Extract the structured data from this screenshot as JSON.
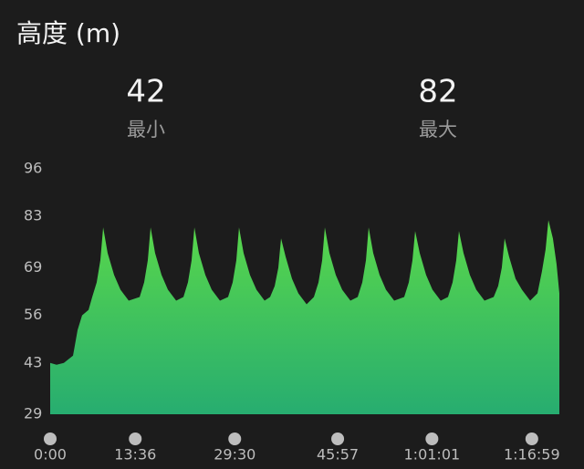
{
  "chart_data": {
    "type": "area",
    "title": "高度 (m)",
    "stats": [
      {
        "value": 42,
        "label": "最小"
      },
      {
        "value": 82,
        "label": "最大"
      }
    ],
    "x": [
      0,
      61,
      131,
      175,
      219,
      263,
      306,
      368,
      403,
      446,
      481,
      508,
      551,
      613,
      674,
      753,
      858,
      901,
      936,
      963,
      1006,
      1068,
      1129,
      1208,
      1278,
      1321,
      1356,
      1383,
      1426,
      1488,
      1549,
      1628,
      1706,
      1750,
      1785,
      1811,
      1855,
      1916,
      1978,
      2056,
      2109,
      2153,
      2188,
      2214,
      2258,
      2319,
      2380,
      2459,
      2529,
      2573,
      2608,
      2634,
      2678,
      2739,
      2800,
      2879,
      2949,
      2993,
      3028,
      3054,
      3098,
      3159,
      3220,
      3299,
      3395,
      3439,
      3474,
      3500,
      3544,
      3605,
      3666,
      3745,
      3815,
      3859,
      3894,
      3920,
      3964,
      4025,
      4086,
      4165,
      4253,
      4296,
      4331,
      4358,
      4401,
      4463,
      4524,
      4603,
      4673,
      4716,
      4751,
      4778,
      4821,
      4856,
      4883
    ],
    "values": [
      43,
      42.5,
      43,
      44,
      45,
      52,
      56,
      57.5,
      61,
      65,
      71,
      80,
      73,
      67,
      63,
      60,
      61,
      65,
      71,
      80,
      73,
      67,
      63,
      60,
      61,
      65,
      71,
      80,
      73,
      67,
      63,
      60,
      61,
      65,
      71,
      80,
      73,
      67,
      63,
      60,
      61,
      64,
      69,
      77,
      72,
      66,
      62,
      59,
      61,
      65,
      71,
      80,
      73,
      67,
      63,
      60,
      61,
      65,
      71,
      80,
      73,
      67,
      63,
      60,
      61,
      65,
      71,
      79,
      73,
      67,
      63,
      60,
      61,
      65,
      71,
      79,
      73,
      67,
      63,
      60,
      61,
      64,
      69,
      77,
      72,
      66,
      63,
      60,
      62,
      68,
      74,
      82,
      77,
      70,
      62
    ],
    "color": "#5ad84a",
    "xlim": [
      0,
      4883
    ],
    "ylim": [
      29,
      96
    ],
    "yticks": [
      96,
      83,
      69,
      56,
      43,
      29
    ],
    "xticks": [
      {
        "value": 0,
        "label": "0:00"
      },
      {
        "value": 816,
        "label": "13:36"
      },
      {
        "value": 1770,
        "label": "29:30"
      },
      {
        "value": 2757,
        "label": "45:57"
      },
      {
        "value": 3661,
        "label": "1:01:01"
      },
      {
        "value": 4619,
        "label": "1:16:59"
      }
    ]
  }
}
